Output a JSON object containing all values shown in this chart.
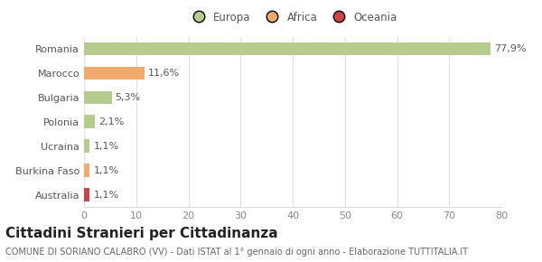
{
  "categories": [
    "Romania",
    "Marocco",
    "Bulgaria",
    "Polonia",
    "Ucraina",
    "Burkina Faso",
    "Australia"
  ],
  "values": [
    77.9,
    11.6,
    5.3,
    2.1,
    1.1,
    1.1,
    1.1
  ],
  "labels": [
    "77,9%",
    "11,6%",
    "5,3%",
    "2,1%",
    "1,1%",
    "1,1%",
    "1,1%"
  ],
  "colors": [
    "#b5cc8e",
    "#f0aa6e",
    "#b5cc8e",
    "#b5cc8e",
    "#b5cc8e",
    "#f0aa6e",
    "#cc4444"
  ],
  "legend_items": [
    {
      "label": "Europa",
      "color": "#b5cc8e"
    },
    {
      "label": "Africa",
      "color": "#f0aa6e"
    },
    {
      "label": "Oceania",
      "color": "#cc4444"
    }
  ],
  "xlim": [
    0,
    80
  ],
  "xticks": [
    0,
    10,
    20,
    30,
    40,
    50,
    60,
    70,
    80
  ],
  "title": "Cittadini Stranieri per Cittadinanza",
  "subtitle": "COMUNE DI SORIANO CALABRO (VV) - Dati ISTAT al 1° gennaio di ogni anno - Elaborazione TUTTITALIA.IT",
  "background_color": "#ffffff",
  "grid_color": "#e0e0e0",
  "bar_height": 0.55,
  "title_fontsize": 11,
  "subtitle_fontsize": 7,
  "label_fontsize": 8,
  "tick_fontsize": 8,
  "legend_fontsize": 8.5
}
